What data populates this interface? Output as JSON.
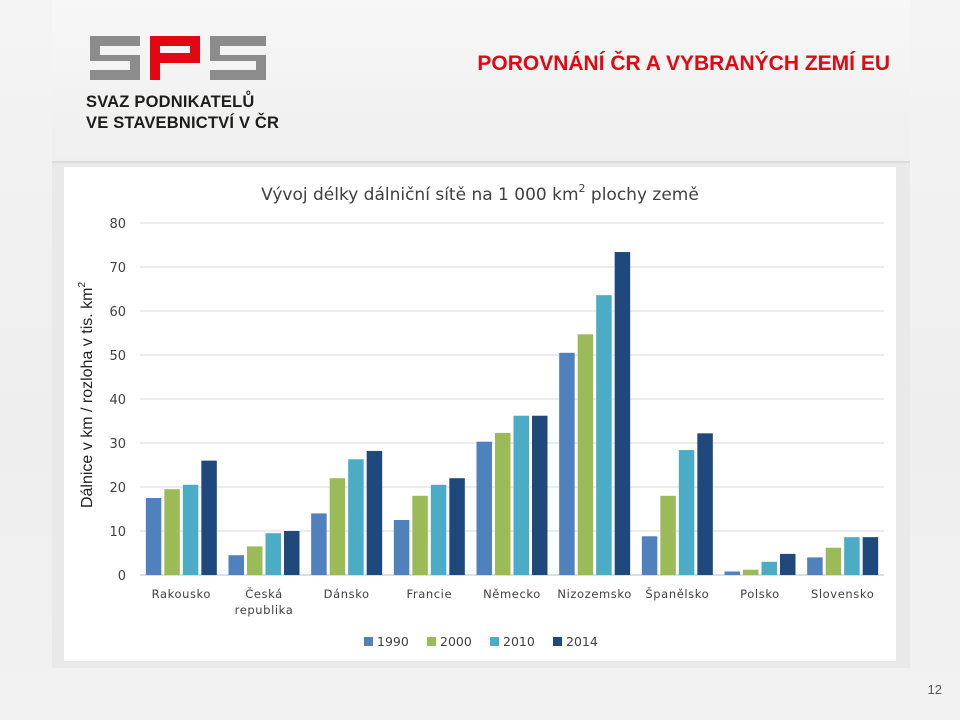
{
  "header": {
    "logo_text": "SPS",
    "logo_subtitle_line1": "SVAZ PODNIKATELŮ",
    "logo_subtitle_line2": "VE STAVEBNICTVÍ V ČR",
    "title": "POROVNÁNÍ ČR A VYBRANÝCH ZEMÍ EU"
  },
  "page_number": "12",
  "colors": {
    "title_red": "#e30613",
    "logo_gray": "#8c8c8c",
    "logo_red": "#e30613"
  },
  "chart_data": {
    "type": "bar",
    "title": "Vývoj délky dálniční sítě na 1 000 km",
    "title_superscript": "2",
    "title_suffix": "plochy země",
    "ylabel": "Dálnice v km / rozloha v tis. km",
    "ylabel_superscript": "2",
    "ylim": [
      0,
      80
    ],
    "yticks": [
      0,
      10,
      20,
      30,
      40,
      50,
      60,
      70,
      80
    ],
    "grid": true,
    "legend_position": "bottom",
    "categories": [
      [
        "Rakousko"
      ],
      [
        "Česká",
        "republika"
      ],
      [
        "Dánsko"
      ],
      [
        "Francie"
      ],
      [
        "Německo"
      ],
      [
        "Nizozemsko"
      ],
      [
        "Španělsko"
      ],
      [
        "Polsko"
      ],
      [
        "Slovensko"
      ]
    ],
    "series": [
      {
        "name": "1990",
        "color": "#4f81bd",
        "values": [
          17.5,
          4.5,
          14,
          12.5,
          30.3,
          50.5,
          8.8,
          0.8,
          4
        ]
      },
      {
        "name": "2000",
        "color": "#9bbb59",
        "values": [
          19.5,
          6.5,
          22,
          18,
          32.3,
          54.7,
          18,
          1.2,
          6.2
        ]
      },
      {
        "name": "2010",
        "color": "#4bacc6",
        "values": [
          20.5,
          9.5,
          26.3,
          20.5,
          36.2,
          63.6,
          28.4,
          3,
          8.6
        ]
      },
      {
        "name": "2014",
        "color": "#1f497d",
        "values": [
          26,
          10,
          28.2,
          22,
          36.2,
          73.4,
          32.2,
          4.8,
          8.6
        ]
      }
    ]
  }
}
